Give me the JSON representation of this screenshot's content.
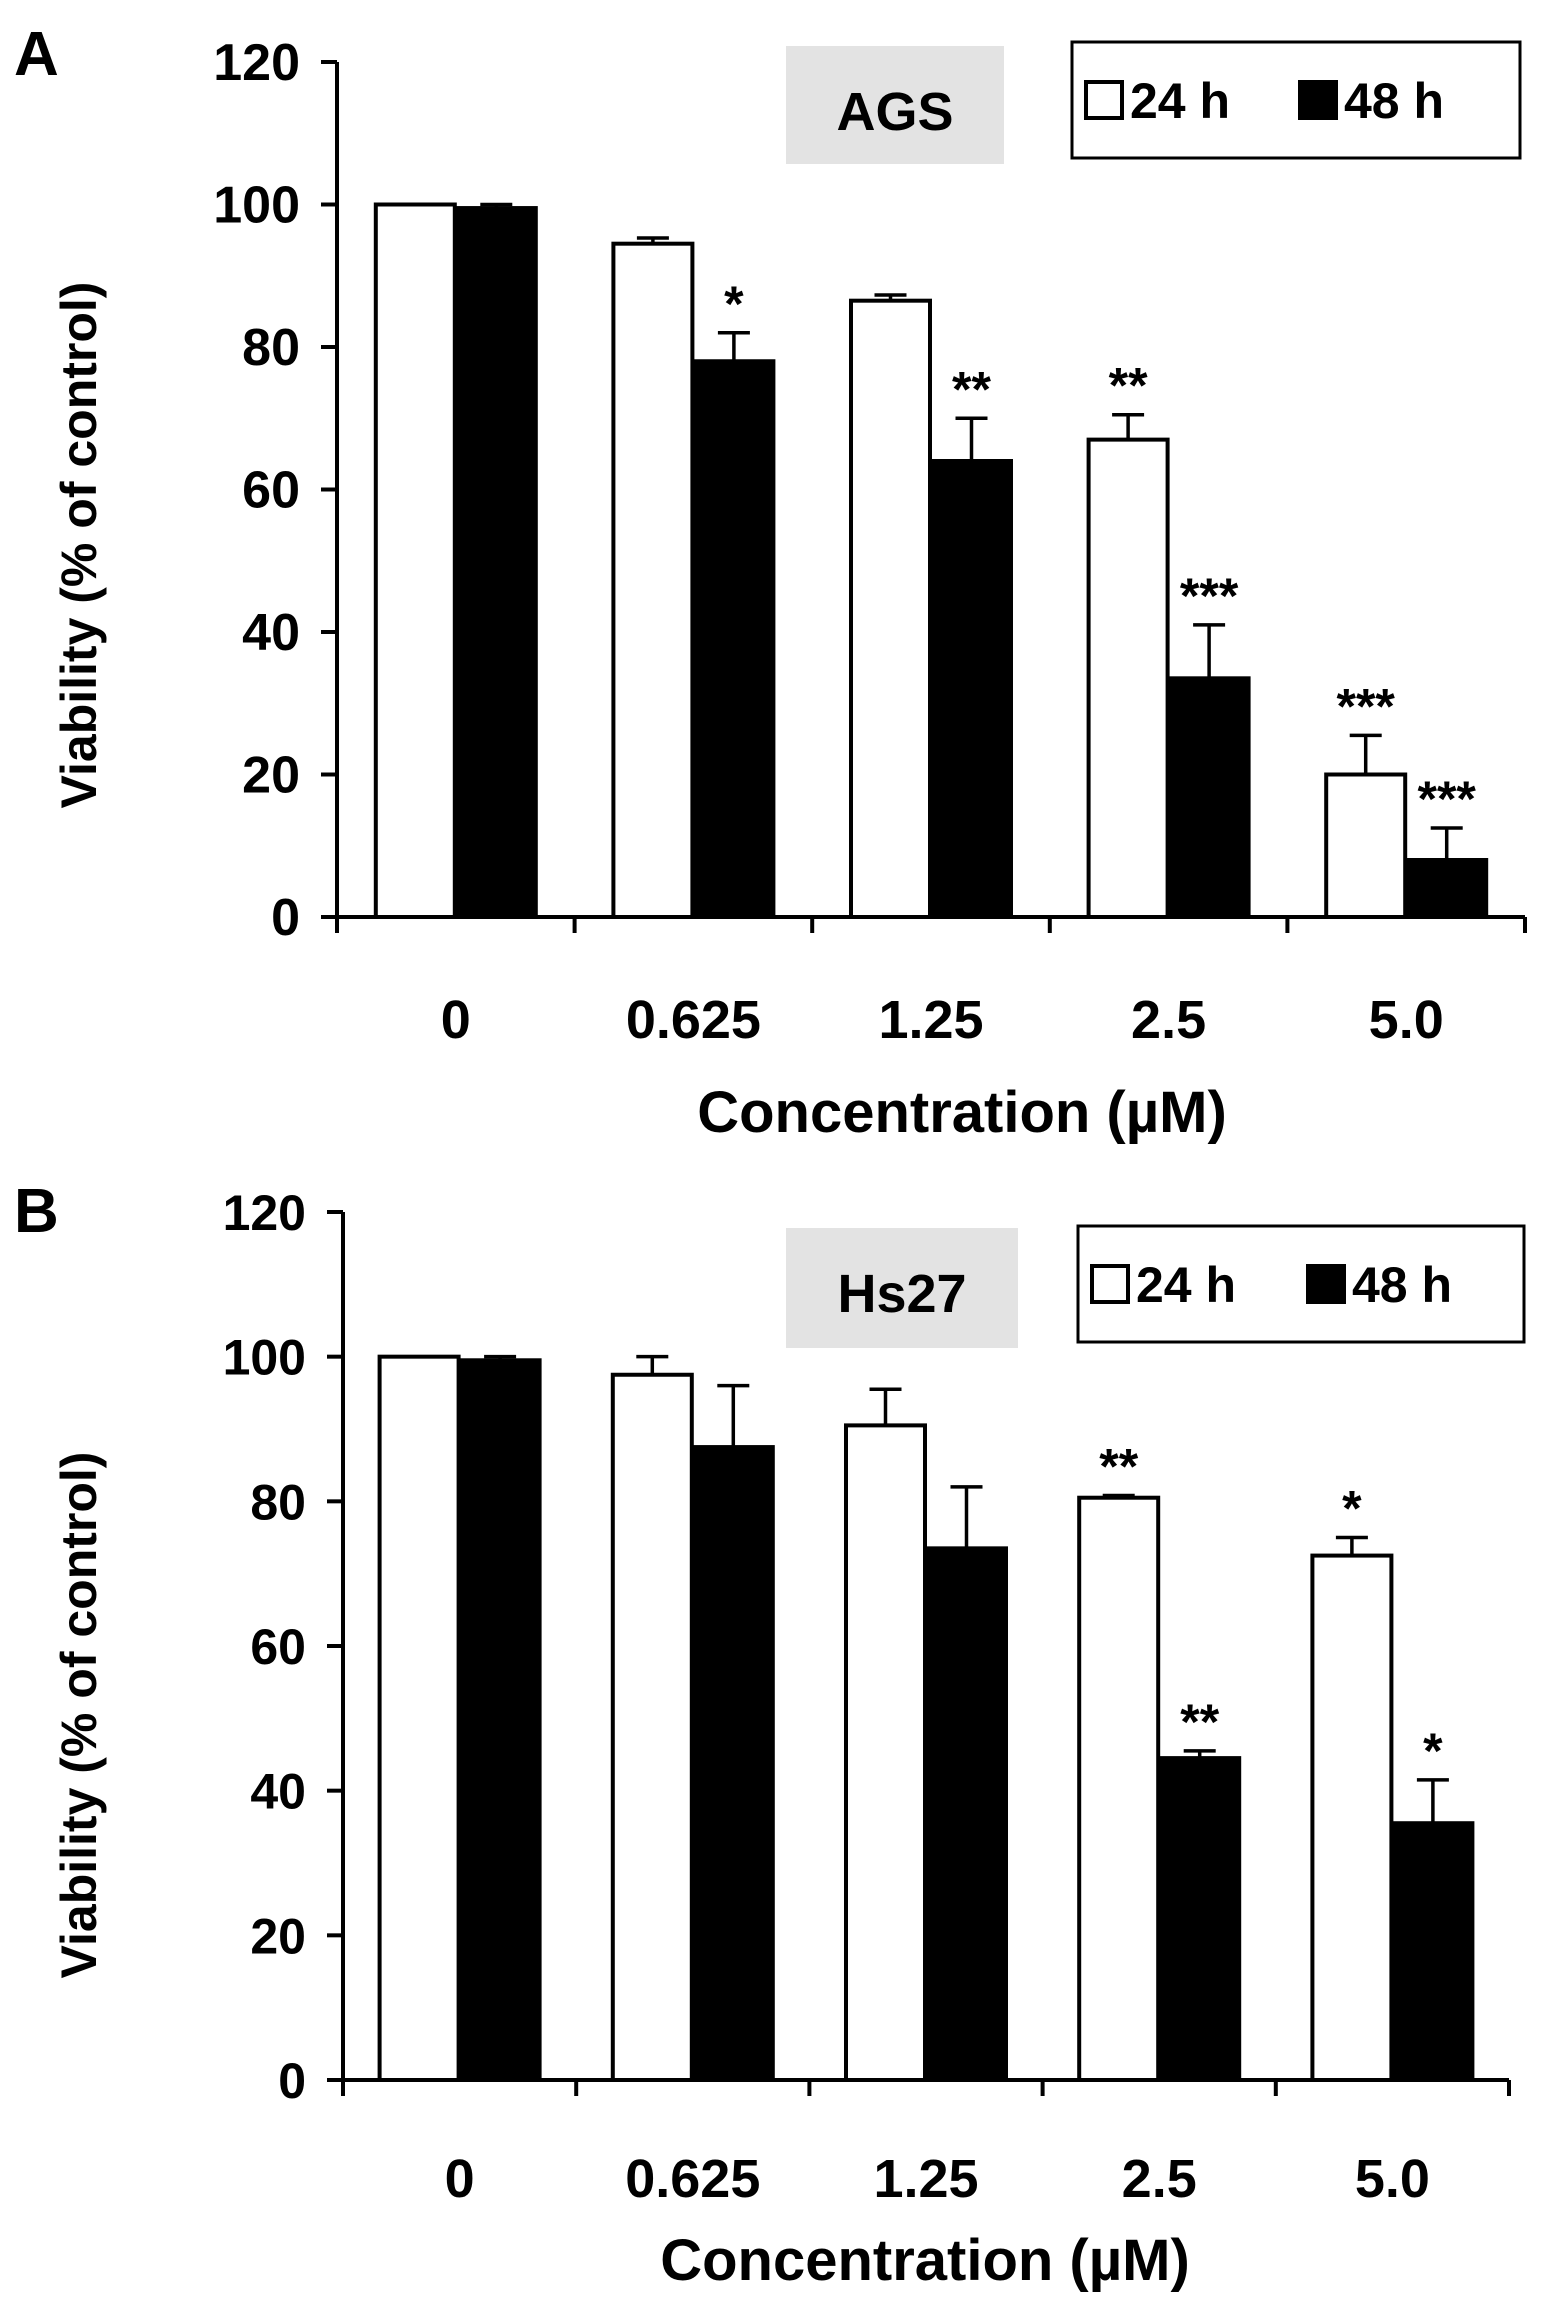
{
  "chart_data": [
    {
      "panel_label": "A",
      "type": "bar",
      "title": "AGS",
      "xlabel": "Concentration (µM)",
      "ylabel": "Viability (% of control)",
      "ylim": [
        0,
        120
      ],
      "yticks": [
        0,
        20,
        40,
        60,
        80,
        100,
        120
      ],
      "categories": [
        "0",
        "0.625",
        "1.25",
        "2.5",
        "5.0"
      ],
      "legend_position": "top-right",
      "series": [
        {
          "name": "24 h",
          "color": "#ffffff",
          "values": [
            100,
            94.5,
            86.5,
            67,
            20
          ],
          "errors": [
            0,
            0.8,
            0.8,
            3.5,
            5.5
          ],
          "significance": [
            "",
            "",
            "",
            "**",
            "***"
          ]
        },
        {
          "name": "48 h",
          "color": "#000000",
          "values": [
            99.5,
            78,
            64,
            33.5,
            8
          ],
          "errors": [
            0.5,
            4,
            6,
            7.5,
            4.5
          ],
          "significance": [
            "",
            "*",
            "**",
            "***",
            "***"
          ]
        }
      ]
    },
    {
      "panel_label": "B",
      "type": "bar",
      "title": "Hs27",
      "xlabel": "Concentration (µM)",
      "ylabel": "Viability  (% of control)",
      "ylim": [
        0,
        120
      ],
      "yticks": [
        0,
        20,
        40,
        60,
        80,
        100,
        120
      ],
      "categories": [
        "0",
        "0.625",
        "1.25",
        "2.5",
        "5.0"
      ],
      "legend_position": "top-right",
      "series": [
        {
          "name": "24 h",
          "color": "#ffffff",
          "values": [
            100,
            97.5,
            90.5,
            80.5,
            72.5
          ],
          "errors": [
            0,
            2.5,
            5,
            0.3,
            2.5
          ],
          "significance": [
            "",
            "",
            "",
            "**",
            "*"
          ]
        },
        {
          "name": "48 h",
          "color": "#000000",
          "values": [
            99.5,
            87.5,
            73.5,
            44.5,
            35.5
          ],
          "errors": [
            0.5,
            8.5,
            8.5,
            1,
            6
          ],
          "significance": [
            "",
            "",
            "",
            "**",
            "*"
          ]
        }
      ]
    }
  ]
}
